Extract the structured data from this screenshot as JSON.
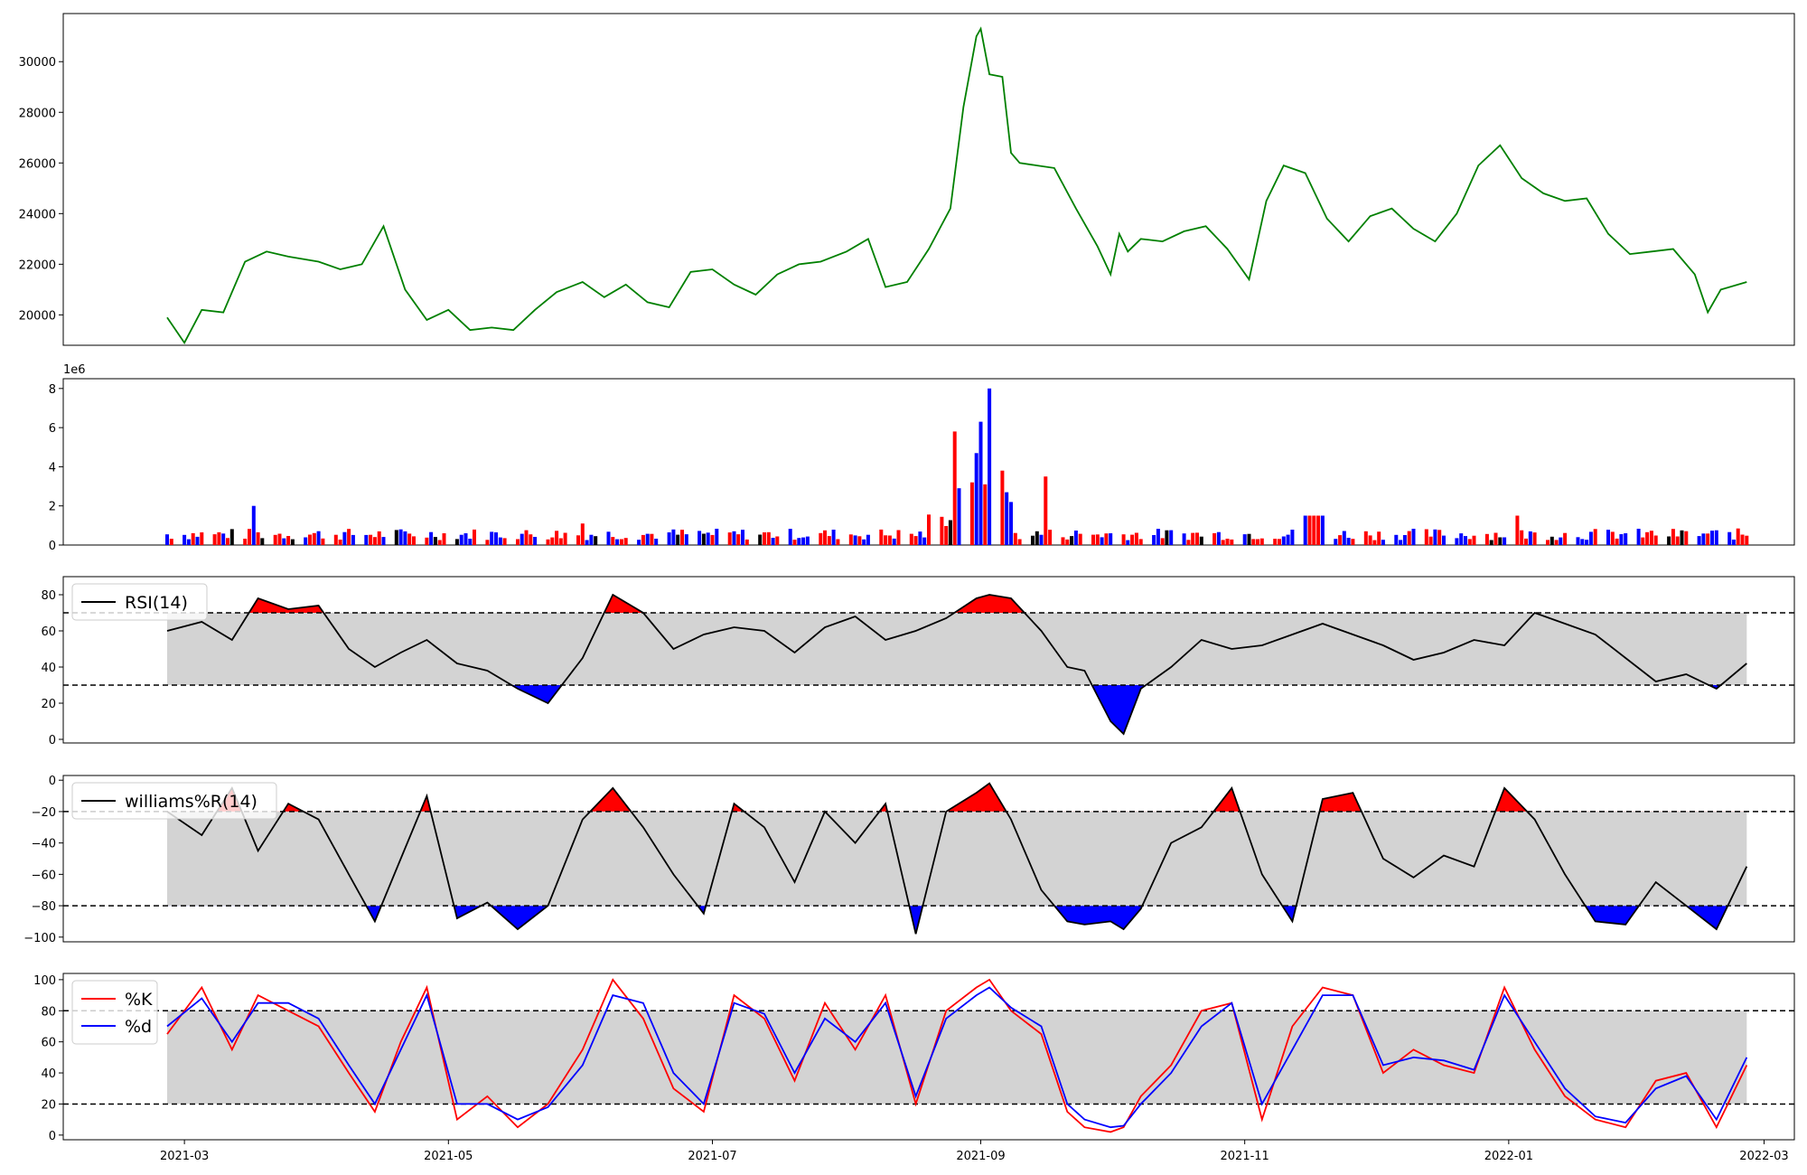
{
  "chart_data": [
    {
      "type": "line",
      "series": [
        {
          "color": "#008000",
          "x": [
            "2021-02-25",
            "2021-03-01",
            "2021-03-05",
            "2021-03-10",
            "2021-03-15",
            "2021-03-20",
            "2021-03-25",
            "2021-04-01",
            "2021-04-06",
            "2021-04-11",
            "2021-04-16",
            "2021-04-21",
            "2021-04-26",
            "2021-05-01",
            "2021-05-06",
            "2021-05-11",
            "2021-05-16",
            "2021-05-21",
            "2021-05-26",
            "2021-06-01",
            "2021-06-06",
            "2021-06-11",
            "2021-06-16",
            "2021-06-21",
            "2021-06-26",
            "2021-07-01",
            "2021-07-06",
            "2021-07-11",
            "2021-07-16",
            "2021-07-21",
            "2021-07-26",
            "2021-08-01",
            "2021-08-06",
            "2021-08-10",
            "2021-08-15",
            "2021-08-20",
            "2021-08-25",
            "2021-08-28",
            "2021-08-31",
            "2021-09-01",
            "2021-09-03",
            "2021-09-06",
            "2021-09-08",
            "2021-09-10",
            "2021-09-14",
            "2021-09-18",
            "2021-09-23",
            "2021-09-28",
            "2021-10-01",
            "2021-10-03",
            "2021-10-05",
            "2021-10-08",
            "2021-10-13",
            "2021-10-18",
            "2021-10-23",
            "2021-10-28",
            "2021-11-02",
            "2021-11-06",
            "2021-11-10",
            "2021-11-15",
            "2021-11-20",
            "2021-11-25",
            "2021-11-30",
            "2021-12-05",
            "2021-12-10",
            "2021-12-15",
            "2021-12-20",
            "2021-12-25",
            "2021-12-30",
            "2022-01-04",
            "2022-01-09",
            "2022-01-14",
            "2022-01-19",
            "2022-01-24",
            "2022-01-29",
            "2022-02-03",
            "2022-02-08",
            "2022-02-13",
            "2022-02-16",
            "2022-02-19",
            "2022-02-25"
          ],
          "values": [
            19900,
            18900,
            20200,
            20100,
            22100,
            22500,
            22300,
            22100,
            21800,
            22000,
            23500,
            21000,
            19800,
            20200,
            19400,
            19500,
            19400,
            20200,
            20900,
            21300,
            20700,
            21200,
            20500,
            20300,
            21700,
            21800,
            21200,
            20800,
            21600,
            22000,
            22100,
            22500,
            23000,
            21100,
            21300,
            22600,
            24200,
            28200,
            31000,
            31300,
            29500,
            29400,
            26400,
            26000,
            25900,
            25800,
            24200,
            22700,
            21600,
            23200,
            22500,
            23000,
            22900,
            23300,
            23500,
            22600,
            21400,
            24500,
            25900,
            25600,
            23800,
            22900,
            23900,
            24200,
            23400,
            22900,
            24000,
            25900,
            26700,
            25400,
            24800,
            24500,
            24600,
            23200,
            22400,
            22500,
            22600,
            21600,
            20100,
            21000,
            21300
          ]
        }
      ],
      "yticks": [
        20000,
        22000,
        24000,
        26000,
        28000,
        30000
      ],
      "ylim": [
        18800,
        31900
      ]
    },
    {
      "type": "bar",
      "offset_text": "1e6",
      "yticks": [
        0,
        2,
        4,
        6,
        8
      ],
      "yscale": 1000000,
      "ylim": [
        0,
        8500000
      ],
      "bars": []
    },
    {
      "type": "area",
      "legend": [
        "RSI(14)"
      ],
      "legend_position": "top-left",
      "line_color": "#000000",
      "band": [
        30,
        70
      ],
      "above_color": "#ff0000",
      "below_color": "#0000ff",
      "band_color": "#d3d3d3",
      "yticks": [
        0,
        20,
        40,
        60,
        80
      ],
      "ylim": [
        -2,
        90
      ],
      "x": [
        "2021-02-25",
        "2021-03-05",
        "2021-03-12",
        "2021-03-18",
        "2021-03-25",
        "2021-04-01",
        "2021-04-08",
        "2021-04-14",
        "2021-04-20",
        "2021-04-26",
        "2021-05-03",
        "2021-05-10",
        "2021-05-17",
        "2021-05-24",
        "2021-06-01",
        "2021-06-08",
        "2021-06-15",
        "2021-06-22",
        "2021-06-29",
        "2021-07-06",
        "2021-07-13",
        "2021-07-20",
        "2021-07-27",
        "2021-08-03",
        "2021-08-10",
        "2021-08-17",
        "2021-08-24",
        "2021-08-31",
        "2021-09-03",
        "2021-09-08",
        "2021-09-15",
        "2021-09-21",
        "2021-09-25",
        "2021-10-01",
        "2021-10-04",
        "2021-10-08",
        "2021-10-15",
        "2021-10-22",
        "2021-10-29",
        "2021-11-05",
        "2021-11-12",
        "2021-11-19",
        "2021-11-26",
        "2021-12-03",
        "2021-12-10",
        "2021-12-17",
        "2021-12-24",
        "2021-12-31",
        "2022-01-07",
        "2022-01-14",
        "2022-01-21",
        "2022-01-28",
        "2022-02-04",
        "2022-02-11",
        "2022-02-18",
        "2022-02-25"
      ],
      "values": [
        60,
        65,
        55,
        78,
        72,
        74,
        50,
        40,
        48,
        55,
        42,
        38,
        28,
        20,
        45,
        80,
        70,
        50,
        58,
        62,
        60,
        48,
        62,
        68,
        55,
        60,
        67,
        78,
        80,
        78,
        60,
        40,
        38,
        10,
        3,
        28,
        40,
        55,
        50,
        52,
        58,
        64,
        58,
        52,
        44,
        48,
        55,
        52,
        70,
        64,
        58,
        45,
        32,
        36,
        28,
        42
      ]
    },
    {
      "type": "area",
      "legend": [
        "williams%R(14)"
      ],
      "legend_position": "top-left",
      "line_color": "#000000",
      "band": [
        -80,
        -20
      ],
      "above_color": "#ff0000",
      "below_color": "#0000ff",
      "band_color": "#d3d3d3",
      "yticks": [
        -100,
        -80,
        -60,
        -40,
        -20,
        0
      ],
      "ylim": [
        -103,
        3
      ],
      "x": [
        "2021-02-25",
        "2021-03-05",
        "2021-03-12",
        "2021-03-18",
        "2021-03-25",
        "2021-04-01",
        "2021-04-08",
        "2021-04-14",
        "2021-04-20",
        "2021-04-26",
        "2021-05-03",
        "2021-05-10",
        "2021-05-17",
        "2021-05-24",
        "2021-06-01",
        "2021-06-08",
        "2021-06-15",
        "2021-06-22",
        "2021-06-29",
        "2021-07-06",
        "2021-07-13",
        "2021-07-20",
        "2021-07-27",
        "2021-08-03",
        "2021-08-10",
        "2021-08-17",
        "2021-08-24",
        "2021-08-31",
        "2021-09-03",
        "2021-09-08",
        "2021-09-15",
        "2021-09-21",
        "2021-09-25",
        "2021-10-01",
        "2021-10-04",
        "2021-10-08",
        "2021-10-15",
        "2021-10-22",
        "2021-10-29",
        "2021-11-05",
        "2021-11-12",
        "2021-11-19",
        "2021-11-26",
        "2021-12-03",
        "2021-12-10",
        "2021-12-17",
        "2021-12-24",
        "2021-12-31",
        "2022-01-07",
        "2022-01-14",
        "2022-01-21",
        "2022-01-28",
        "2022-02-04",
        "2022-02-11",
        "2022-02-18",
        "2022-02-25"
      ],
      "values": [
        -20,
        -35,
        -5,
        -45,
        -15,
        -25,
        -60,
        -90,
        -50,
        -10,
        -88,
        -78,
        -95,
        -80,
        -25,
        -5,
        -30,
        -60,
        -85,
        -15,
        -30,
        -65,
        -20,
        -40,
        -15,
        -98,
        -20,
        -8,
        -2,
        -25,
        -70,
        -90,
        -92,
        -90,
        -95,
        -82,
        -40,
        -30,
        -5,
        -60,
        -90,
        -12,
        -8,
        -50,
        -62,
        -48,
        -55,
        -5,
        -25,
        -60,
        -90,
        -92,
        -65,
        -80,
        -95,
        -55
      ]
    },
    {
      "type": "line",
      "legend": [
        "%K",
        "%d"
      ],
      "legend_position": "top-left",
      "band": [
        20,
        80
      ],
      "band_color": "#d3d3d3",
      "yticks": [
        0,
        20,
        40,
        60,
        80,
        100
      ],
      "ylim": [
        -3,
        104
      ],
      "xticks": [
        "2021-03",
        "2021-05",
        "2021-07",
        "2021-09",
        "2021-11",
        "2022-01",
        "2022-03"
      ],
      "x": [
        "2021-02-25",
        "2021-03-05",
        "2021-03-12",
        "2021-03-18",
        "2021-03-25",
        "2021-04-01",
        "2021-04-08",
        "2021-04-14",
        "2021-04-20",
        "2021-04-26",
        "2021-05-03",
        "2021-05-10",
        "2021-05-17",
        "2021-05-24",
        "2021-06-01",
        "2021-06-08",
        "2021-06-15",
        "2021-06-22",
        "2021-06-29",
        "2021-07-06",
        "2021-07-13",
        "2021-07-20",
        "2021-07-27",
        "2021-08-03",
        "2021-08-10",
        "2021-08-17",
        "2021-08-24",
        "2021-08-31",
        "2021-09-03",
        "2021-09-08",
        "2021-09-15",
        "2021-09-21",
        "2021-09-25",
        "2021-10-01",
        "2021-10-04",
        "2021-10-08",
        "2021-10-15",
        "2021-10-22",
        "2021-10-29",
        "2021-11-05",
        "2021-11-12",
        "2021-11-19",
        "2021-11-26",
        "2021-12-03",
        "2021-12-10",
        "2021-12-17",
        "2021-12-24",
        "2021-12-31",
        "2022-01-07",
        "2022-01-14",
        "2022-01-21",
        "2022-01-28",
        "2022-02-04",
        "2022-02-11",
        "2022-02-18",
        "2022-02-25"
      ],
      "series": [
        {
          "name": "%K",
          "color": "#ff0000",
          "values": [
            65,
            95,
            55,
            90,
            80,
            70,
            40,
            15,
            60,
            95,
            10,
            25,
            5,
            20,
            55,
            100,
            75,
            30,
            15,
            90,
            75,
            35,
            85,
            55,
            90,
            20,
            80,
            95,
            100,
            80,
            65,
            15,
            5,
            2,
            5,
            25,
            45,
            80,
            85,
            10,
            70,
            95,
            90,
            40,
            55,
            45,
            40,
            95,
            55,
            25,
            10,
            5,
            35,
            40,
            5,
            45
          ]
        },
        {
          "name": "%d",
          "color": "#0000ff",
          "values": [
            70,
            88,
            60,
            85,
            85,
            75,
            45,
            20,
            55,
            90,
            20,
            20,
            10,
            18,
            45,
            90,
            85,
            40,
            20,
            85,
            78,
            40,
            75,
            60,
            85,
            25,
            75,
            90,
            95,
            82,
            70,
            20,
            10,
            5,
            6,
            20,
            40,
            70,
            85,
            20,
            55,
            90,
            90,
            45,
            50,
            48,
            42,
            90,
            60,
            30,
            12,
            8,
            30,
            38,
            10,
            50
          ]
        }
      ]
    }
  ]
}
